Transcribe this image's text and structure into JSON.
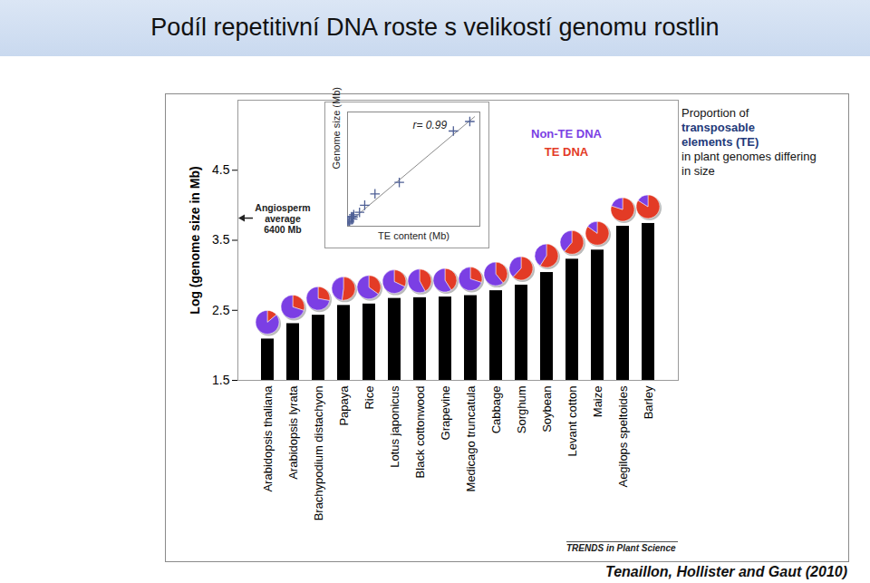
{
  "chart_data": [
    {
      "type": "bar",
      "title": "Podíl repetitivní DNA roste s velikostí genomu rostlin",
      "subtitle": [
        "Proportion of",
        "transposable",
        "elements (TE)",
        "in plant genomes differing",
        "in size"
      ],
      "ylabel": "Log (genome size in Mb)",
      "categories": [
        "Arabidopsis thaliana",
        "Arabidopsis lyrata",
        "Brachypodium distachyon",
        "Papaya",
        "Rice",
        "Lotus japonicus",
        "Black cottonwood",
        "Grapevine",
        "Medicago truncatula",
        "Cabbage",
        "Sorghum",
        "Soybean",
        "Levant cotton",
        "Maize",
        "Aegilops speltoides",
        "Barley"
      ],
      "values": [
        2.09,
        2.31,
        2.43,
        2.57,
        2.59,
        2.67,
        2.68,
        2.69,
        2.71,
        2.78,
        2.86,
        3.04,
        3.23,
        3.36,
        3.7,
        3.74
      ],
      "color": "#000000",
      "ylim": [
        1.5,
        5.5
      ],
      "yticks": [
        1.5,
        2.5,
        3.5,
        4.5
      ],
      "grid": false,
      "pie_series": [
        {
          "name": "Non-TE DNA",
          "color": "#7b3fe4",
          "values": [
            86,
            70,
            72,
            48,
            65,
            68,
            58,
            59,
            70,
            61,
            38,
            41,
            39,
            15,
            20,
            16
          ]
        },
        {
          "name": "TE DNA",
          "color": "#e33b26",
          "values": [
            14,
            30,
            28,
            52,
            35,
            32,
            42,
            41,
            30,
            39,
            62,
            59,
            61,
            85,
            80,
            84
          ]
        }
      ],
      "annotations": [
        {
          "text": [
            "Angiosperm",
            "average",
            "6400 Mb"
          ],
          "y": 3.81
        }
      ],
      "source": "TRENDS in Plant Science",
      "caption": "Tenaillon, Hollister and Gaut (2010)"
    },
    {
      "type": "scatter",
      "xlabel": "TE content (Mb)",
      "ylabel": "Genome size (Mb)",
      "x": [
        18,
        62,
        76,
        193,
        136,
        151,
        204,
        200,
        150,
        234,
        453,
        649,
        1037,
        1955,
        4000,
        4620
      ],
      "values": [
        123,
        207,
        272,
        372,
        389,
        472,
        485,
        487,
        500,
        600,
        730,
        1100,
        1700,
        2300,
        5000,
        5500
      ],
      "xlim": [
        0,
        5000
      ],
      "ylim": [
        0,
        6000
      ],
      "tick_labels": false,
      "marker": "plus",
      "color": "#4f6096",
      "fit_line": {
        "x": [
          0,
          4800
        ],
        "y": [
          150,
          5750
        ]
      },
      "annotations": [
        {
          "text": "r= 0.99"
        }
      ]
    }
  ]
}
